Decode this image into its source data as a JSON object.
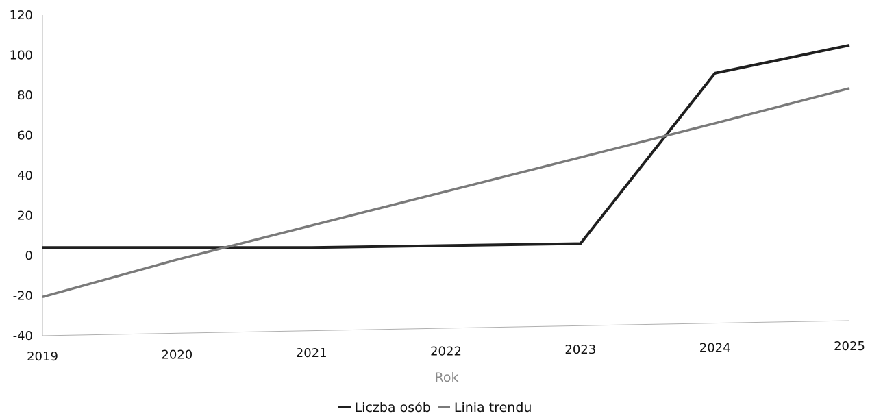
{
  "chart_data": {
    "type": "line",
    "title": "",
    "xlabel": "Rok",
    "ylabel": "",
    "x": [
      "2019",
      "2020",
      "2021",
      "2022",
      "2023",
      "2024",
      "2025"
    ],
    "ylim": [
      -40,
      120
    ],
    "yticks": [
      "-40",
      "-20",
      "0",
      "20",
      "40",
      "60",
      "80",
      "100",
      "120"
    ],
    "grid": false,
    "legend_position": "bottom-center",
    "series": [
      {
        "name": "Liczba osób",
        "color": "#1f1f1f",
        "values": [
          4,
          4,
          4,
          5,
          6,
          91,
          105
        ]
      },
      {
        "name": "Linia trendu",
        "color": "#7a7a7a",
        "values": [
          -20.6,
          -2.0,
          15.0,
          32.0,
          49.0,
          66.0,
          83.5
        ]
      }
    ]
  }
}
